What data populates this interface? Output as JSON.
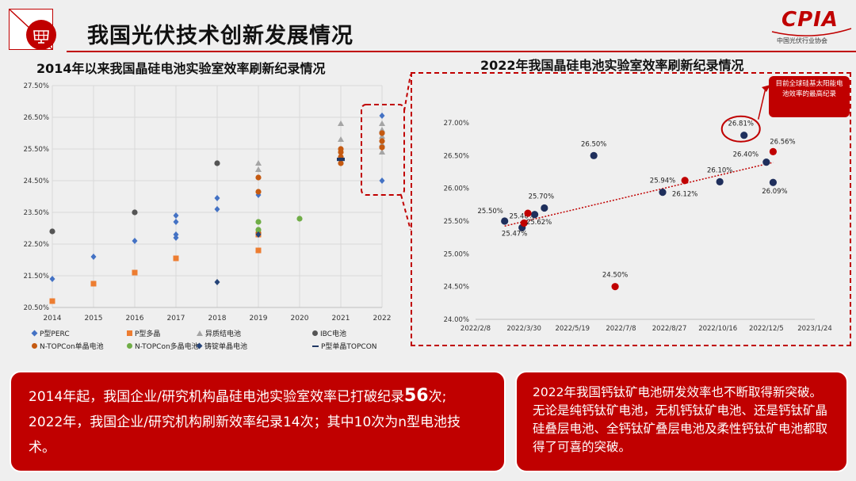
{
  "header": {
    "title": "我国光伏技术创新发展情况",
    "logo_text": "CPIA",
    "logo_subtitle": "中国光伏行业协会"
  },
  "left_chart": {
    "title": "2014年以来我国晶硅电池实验室效率刷新纪录情况"
  },
  "right_chart": {
    "title": "2022年我国晶硅电池实验室效率刷新纪录情况",
    "note": "目前全球硅基太阳能电池效率的最高纪录"
  },
  "colors": {
    "accent": "#c00000",
    "navy": "#1f2f5c"
  },
  "chart_data": [
    {
      "type": "scatter",
      "title": "2014年以来我国晶硅电池实验室效率刷新纪录情况",
      "xlabel": "",
      "ylabel": "",
      "x_categories": [
        "2014",
        "2015",
        "2016",
        "2017",
        "2018",
        "2019",
        "2020",
        "2021",
        "2022"
      ],
      "y_ticks": [
        "20.50%",
        "21.50%",
        "22.50%",
        "23.50%",
        "24.50%",
        "25.50%",
        "26.50%",
        "27.50%"
      ],
      "ylim": [
        20.5,
        27.5
      ],
      "grid": true,
      "legend_position": "bottom",
      "series": [
        {
          "name": "P型PERC",
          "color": "#4472c4",
          "marker": "diamond",
          "points": [
            [
              2014,
              21.4
            ],
            [
              2015,
              22.1
            ],
            [
              2016,
              22.6
            ],
            [
              2017,
              22.7
            ],
            [
              2017,
              22.8
            ],
            [
              2017,
              23.2
            ],
            [
              2017,
              23.4
            ],
            [
              2018,
              23.6
            ],
            [
              2018,
              23.95
            ],
            [
              2019,
              24.05
            ],
            [
              2022,
              26.55
            ],
            [
              2022,
              24.5
            ]
          ]
        },
        {
          "name": "P型多晶",
          "color": "#ed7d31",
          "marker": "square",
          "points": [
            [
              2014,
              20.7
            ],
            [
              2015,
              21.25
            ],
            [
              2016,
              21.6
            ],
            [
              2017,
              22.05
            ],
            [
              2019,
              22.3
            ],
            [
              2019,
              22.8
            ]
          ]
        },
        {
          "name": "异质结电池",
          "color": "#a5a5a5",
          "marker": "triangle",
          "points": [
            [
              2019,
              24.85
            ],
            [
              2019,
              25.05
            ],
            [
              2021,
              25.8
            ],
            [
              2021,
              26.3
            ],
            [
              2022,
              25.4
            ],
            [
              2022,
              25.65
            ],
            [
              2022,
              25.9
            ],
            [
              2022,
              26.1
            ],
            [
              2022,
              26.3
            ]
          ]
        },
        {
          "name": "IBC电池",
          "color": "#555555",
          "marker": "circle",
          "points": [
            [
              2014,
              22.9
            ],
            [
              2016,
              23.5
            ],
            [
              2018,
              25.05
            ]
          ]
        },
        {
          "name": "N-TOPCon单晶电池",
          "color": "#c55a11",
          "marker": "circle",
          "points": [
            [
              2019,
              24.6
            ],
            [
              2019,
              24.15
            ],
            [
              2019,
              22.85
            ],
            [
              2021,
              25.25
            ],
            [
              2021,
              25.4
            ],
            [
              2021,
              25.5
            ],
            [
              2021,
              25.05
            ],
            [
              2022,
              25.55
            ],
            [
              2022,
              25.75
            ],
            [
              2022,
              26.0
            ]
          ]
        },
        {
          "name": "N-TOPCon多晶电池",
          "color": "#70ad47",
          "marker": "circle",
          "points": [
            [
              2019,
              23.2
            ],
            [
              2019,
              22.95
            ],
            [
              2020,
              23.3
            ]
          ]
        },
        {
          "name": "铸锭单晶电池",
          "color": "#264478",
          "marker": "diamond",
          "points": [
            [
              2018,
              21.3
            ],
            [
              2019,
              22.8
            ]
          ]
        },
        {
          "name": "P型单晶TOPCON",
          "color": "#203864",
          "marker": "dash",
          "points": [
            [
              2021,
              25.15
            ],
            [
              2021,
              25.2
            ]
          ]
        }
      ]
    },
    {
      "type": "scatter",
      "title": "2022年我国晶硅电池实验室效率刷新纪录情况",
      "x_ticks": [
        "2022/2/8",
        "2022/3/30",
        "2022/5/19",
        "2022/7/8",
        "2022/8/27",
        "2022/10/16",
        "2022/12/5",
        "2023/1/24"
      ],
      "y_ticks": [
        "24.00%",
        "24.50%",
        "25.00%",
        "25.50%",
        "26.00%",
        "26.50%",
        "27.00%"
      ],
      "ylim": [
        24.0,
        27.0
      ],
      "xlim": [
        "2022-02-08",
        "2023-01-24"
      ],
      "grid": false,
      "trendline": "linear",
      "series": [
        {
          "name": "",
          "color": "#1f2f5c",
          "points": [
            {
              "x": "2022-03-10",
              "y": 25.5,
              "label": "25.50%"
            },
            {
              "x": "2022-03-28",
              "y": 25.4,
              "label": "25.40%"
            },
            {
              "x": "2022-04-10",
              "y": 25.6,
              "label": ""
            },
            {
              "x": "2022-04-20",
              "y": 25.7,
              "label": "25.70%"
            },
            {
              "x": "2022-06-10",
              "y": 26.5,
              "label": "26.50%"
            },
            {
              "x": "2022-08-20",
              "y": 25.94,
              "label": "25.94%"
            },
            {
              "x": "2022-10-18",
              "y": 26.1,
              "label": "26.10%"
            },
            {
              "x": "2022-11-12",
              "y": 26.81,
              "label": "26.81%"
            },
            {
              "x": "2022-12-05",
              "y": 26.4,
              "label": "26.40%"
            },
            {
              "x": "2022-12-12",
              "y": 26.09,
              "label": "26.09%"
            }
          ]
        },
        {
          "name": "",
          "color": "#c00000",
          "points": [
            {
              "x": "2022-03-30",
              "y": 25.47,
              "label": "25.47%"
            },
            {
              "x": "2022-04-03",
              "y": 25.62,
              "label": "25.62%"
            },
            {
              "x": "2022-07-02",
              "y": 24.5,
              "label": "24.50%"
            },
            {
              "x": "2022-09-12",
              "y": 26.12,
              "label": "26.12%"
            },
            {
              "x": "2022-12-12",
              "y": 26.56,
              "label": "26.56%"
            }
          ]
        }
      ]
    }
  ],
  "summary_left": {
    "line1_prefix": "2014年起，我国企业/研究机构晶硅电池实验室效率已打破纪录",
    "line1_count": "56",
    "line1_suffix": "次;",
    "line2": "2022年，我国企业/研究机构刷新效率纪录14次；其中10次为n型电池技术。"
  },
  "summary_right": {
    "text": "2022年我国钙钛矿电池研发效率也不断取得新突破。无论是纯钙钛矿电池，无机钙钛矿电池、还是钙钛矿晶硅叠层电池、全钙钛矿叠层电池及柔性钙钛矿电池都取得了可喜的突破。"
  }
}
